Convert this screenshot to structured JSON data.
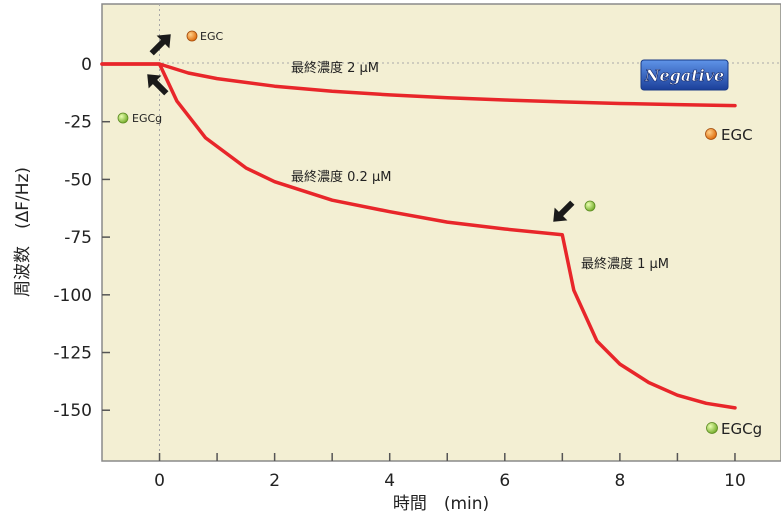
{
  "chart_data": {
    "type": "line",
    "xlabel": "時間　(min)",
    "ylabel": "周波数　(ΔF/Hz)",
    "xlim": [
      -1,
      10.8
    ],
    "ylim": [
      -172,
      26
    ],
    "x_ticks": [
      0,
      2,
      4,
      6,
      8,
      10
    ],
    "y_ticks": [
      0,
      -25,
      -50,
      -75,
      -100,
      -125,
      -150
    ],
    "grid": "dotted reference lines at x=0 and y=0",
    "series": [
      {
        "color": "#e8262a",
        "x": [
          -1,
          0,
          0.5,
          1,
          2,
          3,
          4,
          5,
          6,
          7,
          8,
          9,
          10
        ],
        "y": [
          0,
          0,
          -3.9,
          -6.3,
          -9.6,
          -11.8,
          -13.4,
          -14.6,
          -15.6,
          -16.4,
          -17.1,
          -17.6,
          -18
        ]
      },
      {
        "color": "#e8262a",
        "x": [
          -1,
          0,
          0.3,
          0.8,
          1.5,
          2,
          3,
          4,
          5,
          6,
          7,
          7.2,
          7.6,
          8,
          8.5,
          9,
          9.5,
          10
        ],
        "y": [
          0,
          0,
          -16,
          -32,
          -45,
          -51,
          -59,
          -64,
          -68.5,
          -71.5,
          -74,
          -98,
          -120,
          -130,
          -138,
          -143.5,
          -147,
          -149
        ]
      }
    ],
    "annotations": {
      "conc_2": "最終濃度 2 μM",
      "conc_02": "最終濃度 0.2 μM",
      "conc_1": "最終濃度 1 μM",
      "egc_top": "EGC",
      "egcg_left": "EGCg",
      "egc_right": "EGC",
      "egcg_right": "EGCg",
      "badge": "Negative"
    },
    "colors": {
      "plot_bg": "#f3efd3",
      "line": "#e8262a",
      "egc_dot": "#e8821e",
      "egcg_dot": "#9cc748",
      "badge": "#2457b8"
    }
  }
}
